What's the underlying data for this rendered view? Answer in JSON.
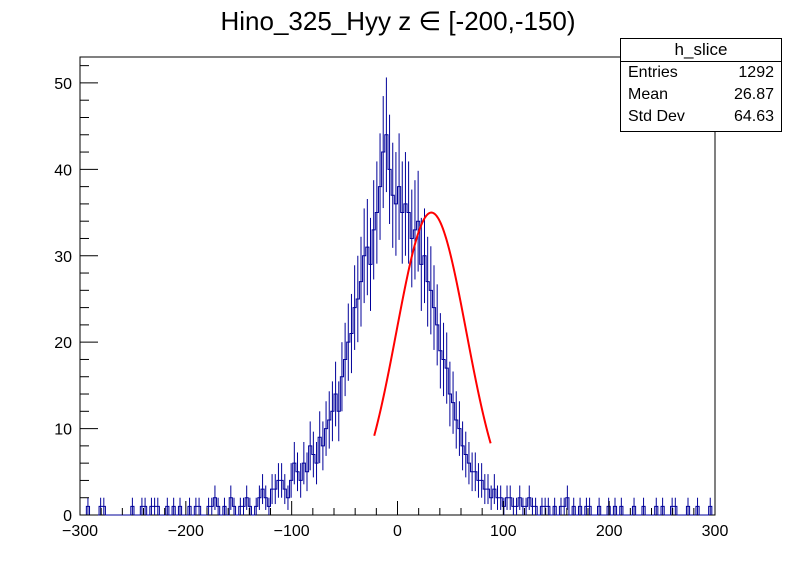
{
  "chart_data": {
    "type": "histogram",
    "title": "Hino_325_Hyy z  ∈ [-200,-150)",
    "xlim": [
      -300,
      300
    ],
    "ylim": [
      0,
      53
    ],
    "x_ticks": [
      "−300",
      "−200",
      "−100",
      "0",
      "100",
      "200",
      "300"
    ],
    "y_ticks": [
      "0",
      "10",
      "20",
      "30",
      "40",
      "50"
    ],
    "bin_width": 3,
    "bin_start": -300,
    "counts": [
      0,
      0,
      1,
      0,
      0,
      0,
      1,
      1,
      0,
      0,
      0,
      0,
      0,
      0,
      0,
      0,
      1,
      0,
      0,
      1,
      1,
      0,
      1,
      1,
      1,
      0,
      0,
      1,
      0,
      1,
      0,
      1,
      0,
      0,
      1,
      0,
      1,
      1,
      0,
      0,
      1,
      1,
      2,
      1,
      0,
      1,
      0,
      2,
      1,
      0,
      1,
      1,
      2,
      1,
      0,
      1,
      2,
      3,
      2,
      1,
      3,
      3,
      4,
      4,
      3,
      2,
      4,
      6,
      5,
      4,
      6,
      5,
      8,
      7,
      6,
      9,
      8,
      10,
      11,
      12,
      14,
      12,
      16,
      18,
      20,
      21,
      24,
      25,
      27,
      30,
      31,
      29,
      33,
      35,
      38,
      42,
      44,
      40,
      37,
      36,
      38,
      35,
      36,
      35,
      32,
      33,
      34,
      29,
      30,
      27,
      26,
      24,
      22,
      19,
      18,
      17,
      14,
      13,
      11,
      10,
      8,
      7,
      6,
      5,
      5,
      4,
      4,
      3,
      3,
      2,
      3,
      2,
      2,
      1,
      2,
      2,
      1,
      1,
      2,
      1,
      1,
      2,
      1,
      1,
      0,
      1,
      1,
      1,
      0,
      1,
      0,
      1,
      1,
      2,
      0,
      1,
      0,
      1,
      0,
      1,
      1,
      0,
      0,
      1,
      0,
      0,
      1,
      0,
      1,
      0,
      1,
      0,
      0,
      0,
      1,
      0,
      0,
      1,
      0,
      0,
      0,
      1,
      0,
      1,
      0,
      0,
      1,
      1,
      0,
      0,
      0,
      1,
      0,
      0,
      1,
      0,
      0,
      0,
      1
    ],
    "fit": {
      "type": "gaussian",
      "color": "#ff0000",
      "amplitude": 35,
      "mean": 32,
      "sigma": 33,
      "x_range": [
        -22,
        88
      ]
    },
    "hist_color": "#000099"
  },
  "stats": {
    "name": "h_slice",
    "entries_label": "Entries",
    "entries_value": "1292",
    "mean_label": "Mean",
    "mean_value": "26.87",
    "std_label": "Std Dev",
    "std_value": "64.63"
  }
}
